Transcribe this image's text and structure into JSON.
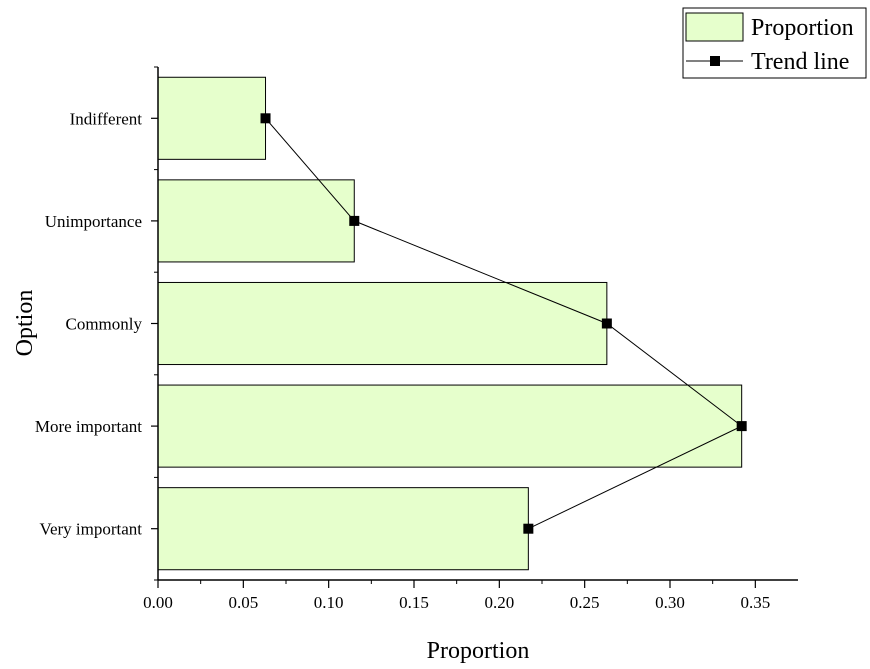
{
  "chart_data": {
    "type": "bar",
    "orientation": "horizontal",
    "categories": [
      "Very important",
      "More important",
      "Commonly",
      "Unimportance",
      "Indifferent"
    ],
    "series": [
      {
        "name": "Proportion",
        "kind": "bar",
        "values": [
          0.217,
          0.342,
          0.263,
          0.115,
          0.063
        ],
        "color": "#e6ffcc"
      },
      {
        "name": "Trend line",
        "kind": "line",
        "marker": "square",
        "values": [
          0.217,
          0.342,
          0.263,
          0.115,
          0.063
        ],
        "color": "#000000"
      }
    ],
    "xlabel": "Proportion",
    "ylabel": "Option",
    "xlim": [
      0,
      0.375
    ],
    "xticks": [
      "0.00",
      "0.05",
      "0.10",
      "0.15",
      "0.20",
      "0.25",
      "0.30",
      "0.35"
    ],
    "grid": false,
    "legend_position": "top-right"
  }
}
